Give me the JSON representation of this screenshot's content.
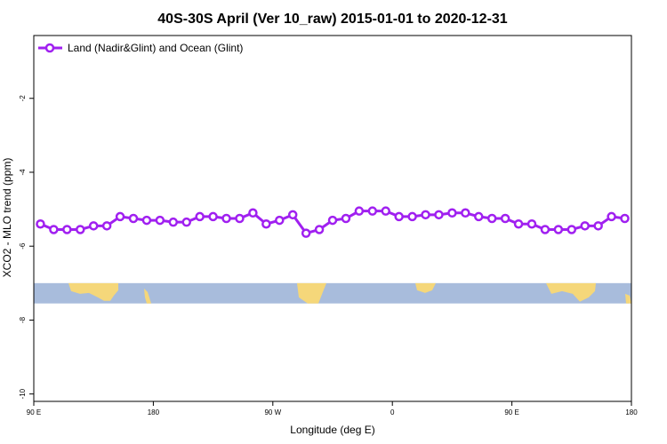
{
  "chart_data": {
    "type": "line",
    "title": "40S-30S April (Ver 10_raw)   2015-01-01 to 2020-12-31",
    "xlabel": "Longitude (deg E)",
    "ylabel": "XCO2 - MLO trend (ppm)",
    "x_tick_labels": [
      "90 E",
      "180",
      "90 W",
      "0",
      "90 E",
      "180"
    ],
    "x_tick_positions": [
      90,
      180,
      270,
      360,
      450,
      540
    ],
    "xlim": [
      90,
      540
    ],
    "y_ticks": [
      -2,
      -4,
      -6,
      -8,
      -10
    ],
    "ylim": [
      -10.2,
      -0.3
    ],
    "grid": false,
    "legend_position": "top-left",
    "series": [
      {
        "name": "Land (Nadir&Glint) and Ocean (Glint)",
        "color": "#a020f0",
        "x": [
          95,
          105,
          115,
          125,
          135,
          145,
          155,
          165,
          175,
          185,
          195,
          205,
          215,
          225,
          235,
          245,
          255,
          265,
          275,
          285,
          295,
          305,
          315,
          325,
          335,
          345,
          355,
          365,
          375,
          385,
          395,
          405,
          415,
          425,
          435,
          445,
          455,
          465,
          475,
          485,
          495,
          505,
          515,
          525,
          535
        ],
        "y": [
          -5.4,
          -5.55,
          -5.55,
          -5.55,
          -5.45,
          -5.45,
          -5.2,
          -5.25,
          -5.3,
          -5.3,
          -5.35,
          -5.35,
          -5.2,
          -5.2,
          -5.25,
          -5.25,
          -5.1,
          -5.4,
          -5.3,
          -5.15,
          -5.65,
          -5.55,
          -5.3,
          -5.25,
          -5.05,
          -5.05,
          -5.05,
          -5.2,
          -5.2,
          -5.15,
          -5.15,
          -5.1,
          -5.1,
          -5.2,
          -5.25,
          -5.25,
          -5.4,
          -5.4,
          -5.55,
          -5.55,
          -5.55,
          -5.45,
          -5.45,
          -5.2,
          -5.25
        ]
      }
    ],
    "map_strip": {
      "y_range": [
        -7.55,
        -7.0
      ],
      "ocean_color": "#a8bcdc",
      "land_color": "#f5d77a"
    }
  }
}
